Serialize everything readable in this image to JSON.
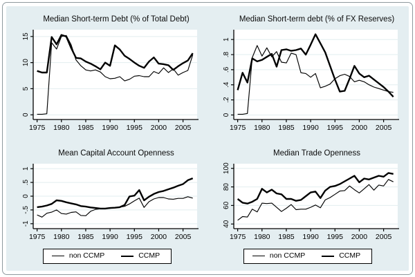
{
  "colors": {
    "canvas_bg": "#e4eef1",
    "plot_bg": "#ffffff",
    "gridline": "#e2edef",
    "axis": "#000000",
    "line": "#000000",
    "frame_border": "#8e999e"
  },
  "years": [
    1975,
    1976,
    1977,
    1978,
    1979,
    1980,
    1981,
    1982,
    1983,
    1984,
    1985,
    1986,
    1987,
    1988,
    1989,
    1990,
    1991,
    1992,
    1993,
    1994,
    1995,
    1996,
    1997,
    1998,
    1999,
    2000,
    2001,
    2002,
    2003,
    2004,
    2005,
    2006,
    2007
  ],
  "legend": {
    "entries": [
      {
        "label": "non CCMP",
        "weight": "thin"
      },
      {
        "label": "CCMP",
        "weight": "thick"
      }
    ]
  },
  "chart_data": [
    {
      "type": "line",
      "title": "Median Short-term Debt (% of Total Debt)",
      "xlabel": "",
      "ylabel": "",
      "xlim": [
        1974.2,
        2007.9
      ],
      "ylim": [
        -0.9,
        16.3
      ],
      "xticks": [
        1975,
        1980,
        1985,
        1990,
        1995,
        2000,
        2005
      ],
      "yticks": [
        0,
        5,
        10,
        15
      ],
      "ytick_labels": [
        "0",
        "5",
        "10",
        "15"
      ],
      "grid": true,
      "legend_visible": false,
      "series": [
        {
          "name": "non CCMP",
          "weight": "thin",
          "values": [
            0.1,
            0.1,
            0.2,
            13.8,
            12.6,
            15.0,
            15.2,
            13.4,
            10.5,
            9.4,
            8.6,
            8.4,
            8.6,
            8.2,
            7.3,
            6.9,
            7.0,
            7.3,
            6.5,
            6.8,
            7.4,
            7.5,
            7.3,
            7.3,
            8.3,
            7.9,
            9.0,
            8.1,
            8.8,
            7.6,
            8.1,
            8.5,
            11.5
          ]
        },
        {
          "name": "CCMP",
          "weight": "thick",
          "values": [
            8.4,
            8.1,
            8.1,
            14.9,
            13.5,
            15.3,
            15.0,
            12.8,
            10.9,
            10.8,
            10.2,
            9.8,
            9.3,
            8.7,
            10.0,
            9.4,
            13.3,
            12.5,
            11.3,
            10.7,
            10.0,
            9.4,
            9.0,
            10.2,
            11.0,
            9.8,
            9.7,
            9.5,
            8.6,
            9.3,
            9.9,
            10.4,
            11.8
          ]
        }
      ]
    },
    {
      "type": "line",
      "title": "Median Short-term debt (% of FX Reserves)",
      "xlabel": "",
      "ylabel": "",
      "xlim": [
        1974.2,
        2007.9
      ],
      "ylim": [
        -0.06,
        1.13
      ],
      "xticks": [
        1975,
        1980,
        1985,
        1990,
        1995,
        2000,
        2005
      ],
      "yticks": [
        0,
        0.2,
        0.4,
        0.6,
        0.8,
        1
      ],
      "ytick_labels": [
        "0",
        ".2",
        ".4",
        ".6",
        ".8",
        "1"
      ],
      "grid": true,
      "legend_visible": false,
      "series": [
        {
          "name": "non CCMP",
          "weight": "thin",
          "values": [
            0.01,
            0.01,
            0.02,
            0.76,
            0.92,
            0.78,
            0.89,
            0.77,
            0.84,
            0.7,
            0.69,
            0.82,
            0.8,
            0.56,
            0.55,
            0.5,
            0.55,
            0.36,
            0.38,
            0.41,
            0.48,
            0.52,
            0.54,
            0.51,
            0.44,
            0.46,
            0.44,
            0.4,
            0.37,
            0.35,
            0.33,
            0.31,
            0.3
          ]
        },
        {
          "name": "CCMP",
          "weight": "thick",
          "values": [
            0.33,
            0.56,
            0.43,
            0.75,
            0.71,
            0.73,
            0.77,
            0.81,
            0.64,
            0.86,
            0.87,
            0.85,
            0.86,
            0.88,
            0.8,
            0.93,
            1.07,
            0.95,
            0.83,
            0.65,
            0.47,
            0.31,
            0.32,
            0.48,
            0.65,
            0.55,
            0.5,
            0.52,
            0.47,
            0.42,
            0.37,
            0.31,
            0.24
          ]
        }
      ]
    },
    {
      "type": "line",
      "title": "Mean Capital Account Openness",
      "xlabel": "",
      "ylabel": "",
      "xlim": [
        1974.2,
        2007.9
      ],
      "ylim": [
        -1.18,
        1.18
      ],
      "xticks": [
        1975,
        1980,
        1985,
        1990,
        1995,
        2000,
        2005
      ],
      "yticks": [
        -1,
        -0.5,
        0,
        0.5,
        1
      ],
      "ytick_labels": [
        "-1",
        "-.5",
        "0",
        ".5",
        "1"
      ],
      "grid": true,
      "legend_visible": true,
      "series": [
        {
          "name": "non CCMP",
          "weight": "thin",
          "values": [
            -0.68,
            -0.76,
            -0.62,
            -0.58,
            -0.5,
            -0.63,
            -0.65,
            -0.59,
            -0.57,
            -0.7,
            -0.71,
            -0.55,
            -0.48,
            -0.46,
            -0.45,
            -0.44,
            -0.42,
            -0.4,
            -0.37,
            -0.28,
            -0.17,
            -0.07,
            -0.41,
            -0.2,
            -0.1,
            -0.05,
            -0.05,
            -0.1,
            -0.11,
            -0.08,
            -0.08,
            -0.02,
            -0.07
          ]
        },
        {
          "name": "CCMP",
          "weight": "thick",
          "values": [
            -0.4,
            -0.38,
            -0.34,
            -0.28,
            -0.15,
            -0.17,
            -0.22,
            -0.26,
            -0.3,
            -0.36,
            -0.38,
            -0.41,
            -0.43,
            -0.45,
            -0.45,
            -0.43,
            -0.42,
            -0.4,
            -0.32,
            -0.01,
            0.02,
            0.22,
            -0.15,
            -0.02,
            0.08,
            0.15,
            0.19,
            0.25,
            0.31,
            0.38,
            0.44,
            0.58,
            0.65
          ]
        }
      ]
    },
    {
      "type": "line",
      "title": "Median Trade Openness",
      "xlabel": "",
      "ylabel": "",
      "xlim": [
        1974.2,
        2007.9
      ],
      "ylim": [
        35,
        105
      ],
      "xticks": [
        1975,
        1980,
        1985,
        1990,
        1995,
        2000,
        2005
      ],
      "yticks": [
        40,
        60,
        80,
        100
      ],
      "ytick_labels": [
        "40",
        "60",
        "80",
        "100"
      ],
      "grid": true,
      "legend_visible": true,
      "series": [
        {
          "name": "non CCMP",
          "weight": "thin",
          "values": [
            44,
            48,
            47.5,
            56,
            53,
            62.5,
            62,
            62.5,
            58,
            53.5,
            57,
            61,
            55.5,
            56,
            56,
            58,
            60.5,
            57.5,
            66,
            68.5,
            72,
            75.5,
            76,
            81,
            77,
            73.5,
            78,
            82.5,
            76.5,
            82,
            81,
            88,
            85.5
          ]
        },
        {
          "name": "CCMP",
          "weight": "thick",
          "values": [
            67,
            63,
            62,
            64,
            67,
            78,
            74,
            77,
            73,
            72,
            67,
            67,
            65,
            66,
            70,
            74,
            75,
            68,
            76,
            80,
            81,
            83,
            86,
            89,
            92,
            85,
            89,
            88,
            90,
            92,
            91,
            95,
            94
          ]
        }
      ]
    }
  ]
}
